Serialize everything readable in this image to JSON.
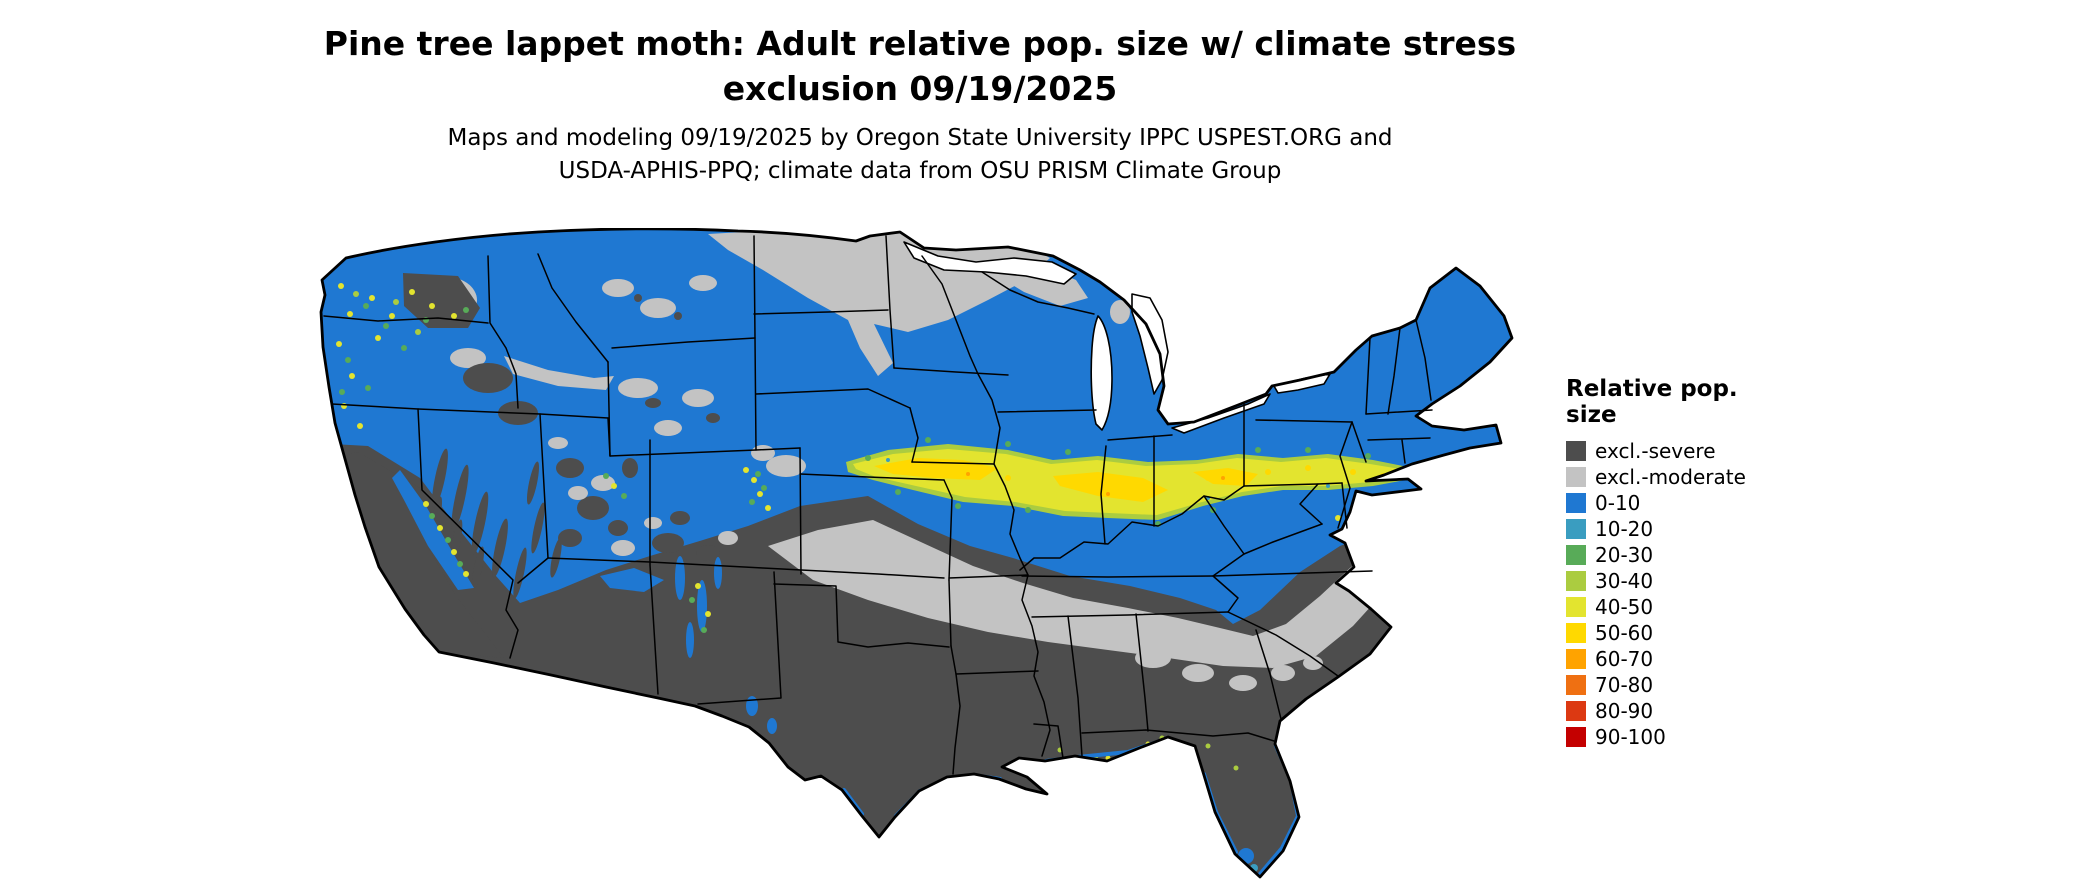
{
  "title": {
    "line1": "Pine tree lappet moth: Adult relative pop. size w/ climate stress",
    "line2": "exclusion 09/19/2025"
  },
  "subtitle": {
    "line1": "Maps and modeling 09/19/2025 by Oregon State University IPPC USPEST.ORG and",
    "line2": "USDA-APHIS-PPQ; climate data from OSU PRISM Climate Group"
  },
  "legend": {
    "title": "Relative pop. size",
    "items": [
      {
        "label": "excl.-severe",
        "color": "#4d4d4d"
      },
      {
        "label": "excl.-moderate",
        "color": "#c3c3c3"
      },
      {
        "label": "0-10",
        "color": "#1f78d2"
      },
      {
        "label": "10-20",
        "color": "#3a9dc0"
      },
      {
        "label": "20-30",
        "color": "#58ab58"
      },
      {
        "label": "30-40",
        "color": "#abcc40"
      },
      {
        "label": "40-50",
        "color": "#e3e42f"
      },
      {
        "label": "50-60",
        "color": "#ffd900"
      },
      {
        "label": "60-70",
        "color": "#ffa300"
      },
      {
        "label": "70-80",
        "color": "#ef7012"
      },
      {
        "label": "80-90",
        "color": "#dc3912"
      },
      {
        "label": "90-100",
        "color": "#c40000"
      }
    ]
  },
  "map": {
    "description": "Continental US raster map of modeled relative population size with climate stress exclusion",
    "palette": {
      "severe": "#4d4d4d",
      "moderate": "#c3c3c3",
      "b0": "#1f78d2",
      "b10": "#3a9dc0",
      "g20": "#58ab58",
      "yg30": "#abcc40",
      "y40": "#e3e42f",
      "g50": "#ffd900",
      "o60": "#ffa300",
      "o70": "#ef7012",
      "r80": "#dc3912",
      "r90": "#c40000"
    }
  }
}
